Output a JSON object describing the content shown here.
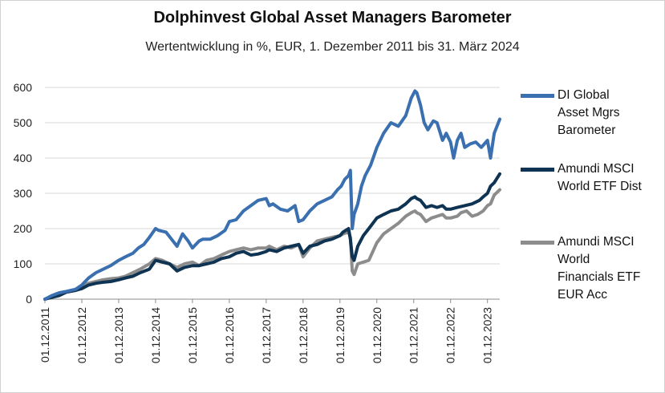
{
  "chart_data": {
    "type": "line",
    "title": "Dolphinvest Global Asset Managers Barometer",
    "subtitle": "Wertentwicklung in %, EUR, 1. Dezember 2011 bis 31. März 2024",
    "xlabel": "",
    "ylabel": "",
    "ylim": [
      0,
      600
    ],
    "yticks": [
      0,
      100,
      200,
      300,
      400,
      500,
      600
    ],
    "xlim": [
      2011.917,
      2024.25
    ],
    "xticks": [
      {
        "value": 2011.917,
        "label": "01.12.2011"
      },
      {
        "value": 2012.917,
        "label": "01.12.2012"
      },
      {
        "value": 2013.917,
        "label": "01.12.2013"
      },
      {
        "value": 2014.917,
        "label": "01.12.2014"
      },
      {
        "value": 2015.917,
        "label": "01.12.2015"
      },
      {
        "value": 2016.917,
        "label": "01.12.2016"
      },
      {
        "value": 2017.917,
        "label": "01.12.2017"
      },
      {
        "value": 2018.917,
        "label": "01.12.2018"
      },
      {
        "value": 2019.917,
        "label": "01.12.2019"
      },
      {
        "value": 2020.917,
        "label": "01.12.2020"
      },
      {
        "value": 2021.917,
        "label": "01.12.2021"
      },
      {
        "value": 2022.917,
        "label": "01.12.2022"
      },
      {
        "value": 2023.917,
        "label": "01.12.2023"
      }
    ],
    "grid": true,
    "legend_position": "right",
    "series": [
      {
        "name": "DI Global Asset Mgrs Barometer",
        "legend_lines": [
          "DI Global",
          "Asset Mgrs",
          "Barometer"
        ],
        "color": "#3a6fb0",
        "x": [
          2011.917,
          2012.1,
          2012.3,
          2012.5,
          2012.75,
          2012.917,
          2013.1,
          2013.3,
          2013.5,
          2013.7,
          2013.917,
          2014.1,
          2014.3,
          2014.45,
          2014.6,
          2014.75,
          2014.917,
          2015.0,
          2015.2,
          2015.35,
          2015.5,
          2015.65,
          2015.8,
          2015.917,
          2016.1,
          2016.2,
          2016.4,
          2016.6,
          2016.8,
          2016.917,
          2017.1,
          2017.3,
          2017.5,
          2017.7,
          2017.917,
          2018.0,
          2018.1,
          2018.3,
          2018.5,
          2018.7,
          2018.8,
          2018.917,
          2019.1,
          2019.3,
          2019.5,
          2019.7,
          2019.85,
          2019.95,
          2020.05,
          2020.15,
          2020.2,
          2020.25,
          2020.3,
          2020.4,
          2020.5,
          2020.6,
          2020.75,
          2020.917,
          2021.1,
          2021.3,
          2021.5,
          2021.7,
          2021.85,
          2021.95,
          2022.0,
          2022.1,
          2022.2,
          2022.3,
          2022.45,
          2022.55,
          2022.7,
          2022.8,
          2022.917,
          2023.0,
          2023.1,
          2023.2,
          2023.3,
          2023.45,
          2023.6,
          2023.75,
          2023.917,
          2024.0,
          2024.1,
          2024.25
        ],
        "values": [
          0,
          10,
          18,
          22,
          28,
          40,
          60,
          75,
          85,
          95,
          110,
          120,
          130,
          145,
          155,
          175,
          200,
          195,
          190,
          170,
          150,
          185,
          165,
          145,
          165,
          170,
          170,
          180,
          195,
          220,
          225,
          250,
          265,
          280,
          285,
          265,
          270,
          255,
          250,
          265,
          220,
          225,
          250,
          270,
          280,
          290,
          310,
          320,
          340,
          350,
          365,
          200,
          240,
          270,
          320,
          350,
          380,
          430,
          470,
          500,
          490,
          520,
          570,
          590,
          585,
          550,
          500,
          480,
          505,
          500,
          450,
          470,
          445,
          400,
          450,
          470,
          430,
          440,
          445,
          430,
          450,
          400,
          470,
          510
        ]
      },
      {
        "name": "Amundi MSCI World ETF Dist",
        "legend_lines": [
          "Amundi MSCI",
          "World ETF Dist"
        ],
        "color": "#0f3352",
        "x": [
          2011.917,
          2012.1,
          2012.3,
          2012.5,
          2012.75,
          2012.917,
          2013.1,
          2013.3,
          2013.5,
          2013.7,
          2013.917,
          2014.1,
          2014.3,
          2014.5,
          2014.75,
          2014.917,
          2015.1,
          2015.3,
          2015.5,
          2015.7,
          2015.917,
          2016.1,
          2016.3,
          2016.5,
          2016.7,
          2016.917,
          2017.1,
          2017.3,
          2017.5,
          2017.7,
          2017.917,
          2018.0,
          2018.2,
          2018.4,
          2018.6,
          2018.8,
          2018.917,
          2019.1,
          2019.3,
          2019.5,
          2019.7,
          2019.917,
          2020.0,
          2020.15,
          2020.2,
          2020.25,
          2020.3,
          2020.4,
          2020.55,
          2020.7,
          2020.917,
          2021.1,
          2021.3,
          2021.5,
          2021.7,
          2021.85,
          2021.95,
          2022.0,
          2022.1,
          2022.25,
          2022.4,
          2022.55,
          2022.7,
          2022.8,
          2022.917,
          2023.1,
          2023.3,
          2023.5,
          2023.7,
          2023.8,
          2023.917,
          2024.0,
          2024.1,
          2024.25
        ],
        "values": [
          0,
          5,
          10,
          20,
          25,
          30,
          40,
          45,
          48,
          50,
          55,
          60,
          65,
          75,
          85,
          110,
          105,
          100,
          80,
          90,
          95,
          95,
          100,
          105,
          115,
          120,
          130,
          135,
          125,
          128,
          135,
          140,
          135,
          145,
          150,
          155,
          130,
          150,
          155,
          165,
          170,
          180,
          190,
          200,
          170,
          120,
          110,
          150,
          180,
          200,
          230,
          240,
          250,
          255,
          270,
          285,
          290,
          285,
          280,
          260,
          265,
          260,
          265,
          255,
          255,
          260,
          265,
          270,
          280,
          290,
          300,
          320,
          330,
          355
        ]
      },
      {
        "name": "Amundi MSCI World Financials ETF EUR Acc",
        "legend_lines": [
          "Amundi MSCI",
          "World",
          "Financials ETF",
          "EUR Acc"
        ],
        "color": "#8c8c8c",
        "x": [
          2011.917,
          2012.1,
          2012.3,
          2012.5,
          2012.75,
          2012.917,
          2013.1,
          2013.3,
          2013.5,
          2013.7,
          2013.917,
          2014.1,
          2014.3,
          2014.5,
          2014.75,
          2014.917,
          2015.1,
          2015.3,
          2015.5,
          2015.7,
          2015.917,
          2016.1,
          2016.3,
          2016.5,
          2016.7,
          2016.917,
          2017.1,
          2017.3,
          2017.5,
          2017.7,
          2017.917,
          2018.0,
          2018.2,
          2018.4,
          2018.6,
          2018.8,
          2018.917,
          2019.1,
          2019.3,
          2019.5,
          2019.7,
          2019.917,
          2020.0,
          2020.15,
          2020.2,
          2020.25,
          2020.3,
          2020.4,
          2020.55,
          2020.7,
          2020.917,
          2021.1,
          2021.3,
          2021.5,
          2021.7,
          2021.85,
          2021.95,
          2022.0,
          2022.1,
          2022.25,
          2022.4,
          2022.55,
          2022.7,
          2022.8,
          2022.917,
          2023.1,
          2023.2,
          2023.35,
          2023.5,
          2023.65,
          2023.8,
          2023.917,
          2024.0,
          2024.1,
          2024.25
        ],
        "values": [
          0,
          8,
          15,
          20,
          25,
          35,
          45,
          50,
          55,
          58,
          60,
          65,
          75,
          85,
          100,
          115,
          110,
          100,
          90,
          100,
          105,
          95,
          110,
          115,
          125,
          135,
          140,
          145,
          140,
          145,
          145,
          150,
          140,
          150,
          145,
          155,
          120,
          145,
          165,
          170,
          175,
          180,
          185,
          190,
          175,
          80,
          70,
          100,
          105,
          110,
          160,
          185,
          200,
          215,
          235,
          245,
          250,
          245,
          240,
          220,
          230,
          235,
          240,
          230,
          230,
          235,
          245,
          250,
          235,
          240,
          250,
          265,
          270,
          295,
          310
        ]
      }
    ]
  }
}
